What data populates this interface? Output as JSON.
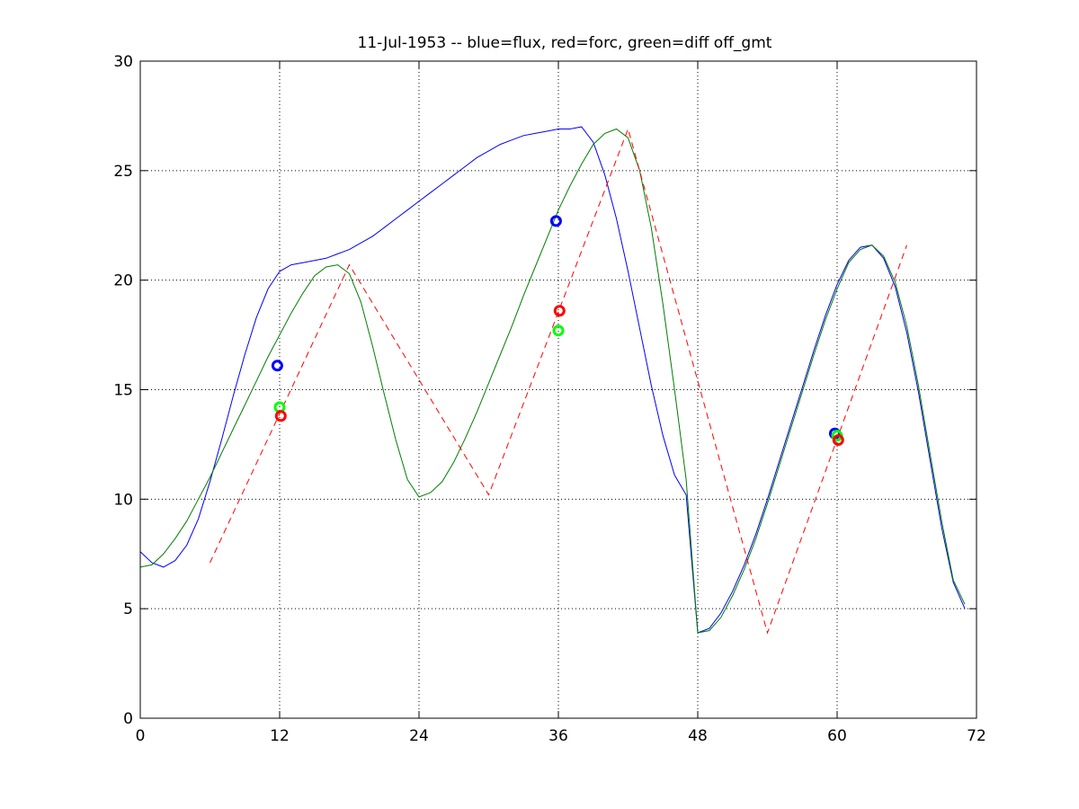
{
  "chart_data": {
    "type": "line",
    "title": "11-Jul-1953 -- blue=flux, red=forc, green=diff off_gmt",
    "xlabel": "",
    "ylabel": "",
    "xlim": [
      0,
      72
    ],
    "ylim": [
      0,
      30
    ],
    "xticks": [
      0,
      12,
      24,
      36,
      48,
      60,
      72
    ],
    "yticks": [
      0,
      5,
      10,
      15,
      20,
      25,
      30
    ],
    "grid": true,
    "series": [
      {
        "color": "#0000ff",
        "style": "solid",
        "x": [
          0,
          1,
          2,
          3,
          4,
          5,
          6,
          7,
          8,
          9,
          10,
          11,
          12,
          13,
          14,
          15,
          16,
          17,
          18,
          19,
          20,
          21,
          22,
          23,
          24,
          25,
          26,
          27,
          28,
          29,
          30,
          31,
          32,
          33,
          34,
          35,
          36,
          37,
          38,
          39,
          40,
          41,
          42,
          43,
          44,
          45,
          46,
          47,
          48,
          49,
          50,
          51,
          52,
          53,
          54,
          55,
          56,
          57,
          58,
          59,
          60,
          61,
          62,
          63,
          64,
          65,
          66,
          67,
          68,
          69,
          70,
          71
        ],
        "y": [
          7.6,
          7.1,
          6.9,
          7.2,
          7.9,
          9.1,
          10.8,
          12.7,
          14.7,
          16.6,
          18.3,
          19.6,
          20.4,
          20.7,
          20.8,
          20.9,
          21.0,
          21.2,
          21.4,
          21.7,
          22.0,
          22.4,
          22.8,
          23.2,
          23.6,
          24.0,
          24.4,
          24.8,
          25.2,
          25.6,
          25.9,
          26.2,
          26.4,
          26.6,
          26.7,
          26.8,
          26.9,
          26.9,
          27.0,
          26.3,
          24.8,
          22.8,
          20.4,
          17.8,
          15.2,
          12.9,
          11.1,
          10.2,
          3.9,
          4.1,
          4.8,
          5.8,
          7.0,
          8.4,
          10.0,
          11.7,
          13.4,
          15.1,
          16.8,
          18.4,
          19.8,
          20.9,
          21.5,
          21.6,
          21.0,
          19.7,
          17.6,
          14.9,
          11.8,
          8.7,
          6.2,
          5.0
        ]
      },
      {
        "color": "#007f00",
        "style": "solid",
        "x": [
          0,
          1,
          2,
          3,
          4,
          5,
          6,
          7,
          8,
          9,
          10,
          11,
          12,
          13,
          14,
          15,
          16,
          17,
          18,
          19,
          20,
          21,
          22,
          23,
          24,
          25,
          26,
          27,
          28,
          29,
          30,
          31,
          32,
          33,
          34,
          35,
          36,
          37,
          38,
          39,
          40,
          41,
          42,
          43,
          44,
          45,
          46,
          47,
          48,
          49,
          50,
          51,
          52,
          53,
          54,
          55,
          56,
          57,
          58,
          59,
          60,
          61,
          62,
          63,
          64,
          65,
          66,
          67,
          68,
          69,
          70,
          71
        ],
        "y": [
          6.9,
          7.0,
          7.5,
          8.2,
          9.0,
          10.0,
          11.0,
          12.1,
          13.2,
          14.3,
          15.4,
          16.5,
          17.5,
          18.5,
          19.4,
          20.2,
          20.6,
          20.7,
          20.3,
          19.0,
          17.0,
          14.8,
          12.7,
          10.9,
          10.1,
          10.3,
          10.8,
          11.7,
          12.8,
          14.0,
          15.3,
          16.6,
          17.9,
          19.3,
          20.6,
          21.9,
          23.2,
          24.3,
          25.3,
          26.2,
          26.7,
          26.9,
          26.5,
          25.0,
          22.4,
          18.9,
          15.0,
          10.9,
          3.9,
          4.0,
          4.6,
          5.6,
          6.8,
          8.2,
          9.8,
          11.5,
          13.2,
          14.9,
          16.6,
          18.2,
          19.6,
          20.8,
          21.4,
          21.6,
          21.1,
          19.9,
          17.9,
          15.2,
          12.1,
          9.0,
          6.3,
          5.2
        ]
      },
      {
        "color": "#ff0000",
        "style": "dashed",
        "x": [
          6,
          18,
          30,
          42,
          54,
          66
        ],
        "y": [
          7.1,
          20.7,
          10.2,
          26.9,
          3.9,
          21.6
        ]
      }
    ],
    "markers": [
      {
        "color": "#0000ff",
        "x": 11.8,
        "y": 16.1
      },
      {
        "color": "#00ff00",
        "x": 12.0,
        "y": 14.2
      },
      {
        "color": "#ff0000",
        "x": 12.1,
        "y": 13.8
      },
      {
        "color": "#0000ff",
        "x": 35.8,
        "y": 22.7
      },
      {
        "color": "#ff0000",
        "x": 36.1,
        "y": 18.6
      },
      {
        "color": "#00ff00",
        "x": 36.0,
        "y": 17.7
      },
      {
        "color": "#0000ff",
        "x": 59.8,
        "y": 13.0
      },
      {
        "color": "#00ff00",
        "x": 60.0,
        "y": 12.9
      },
      {
        "color": "#ff0000",
        "x": 60.1,
        "y": 12.7
      }
    ]
  }
}
